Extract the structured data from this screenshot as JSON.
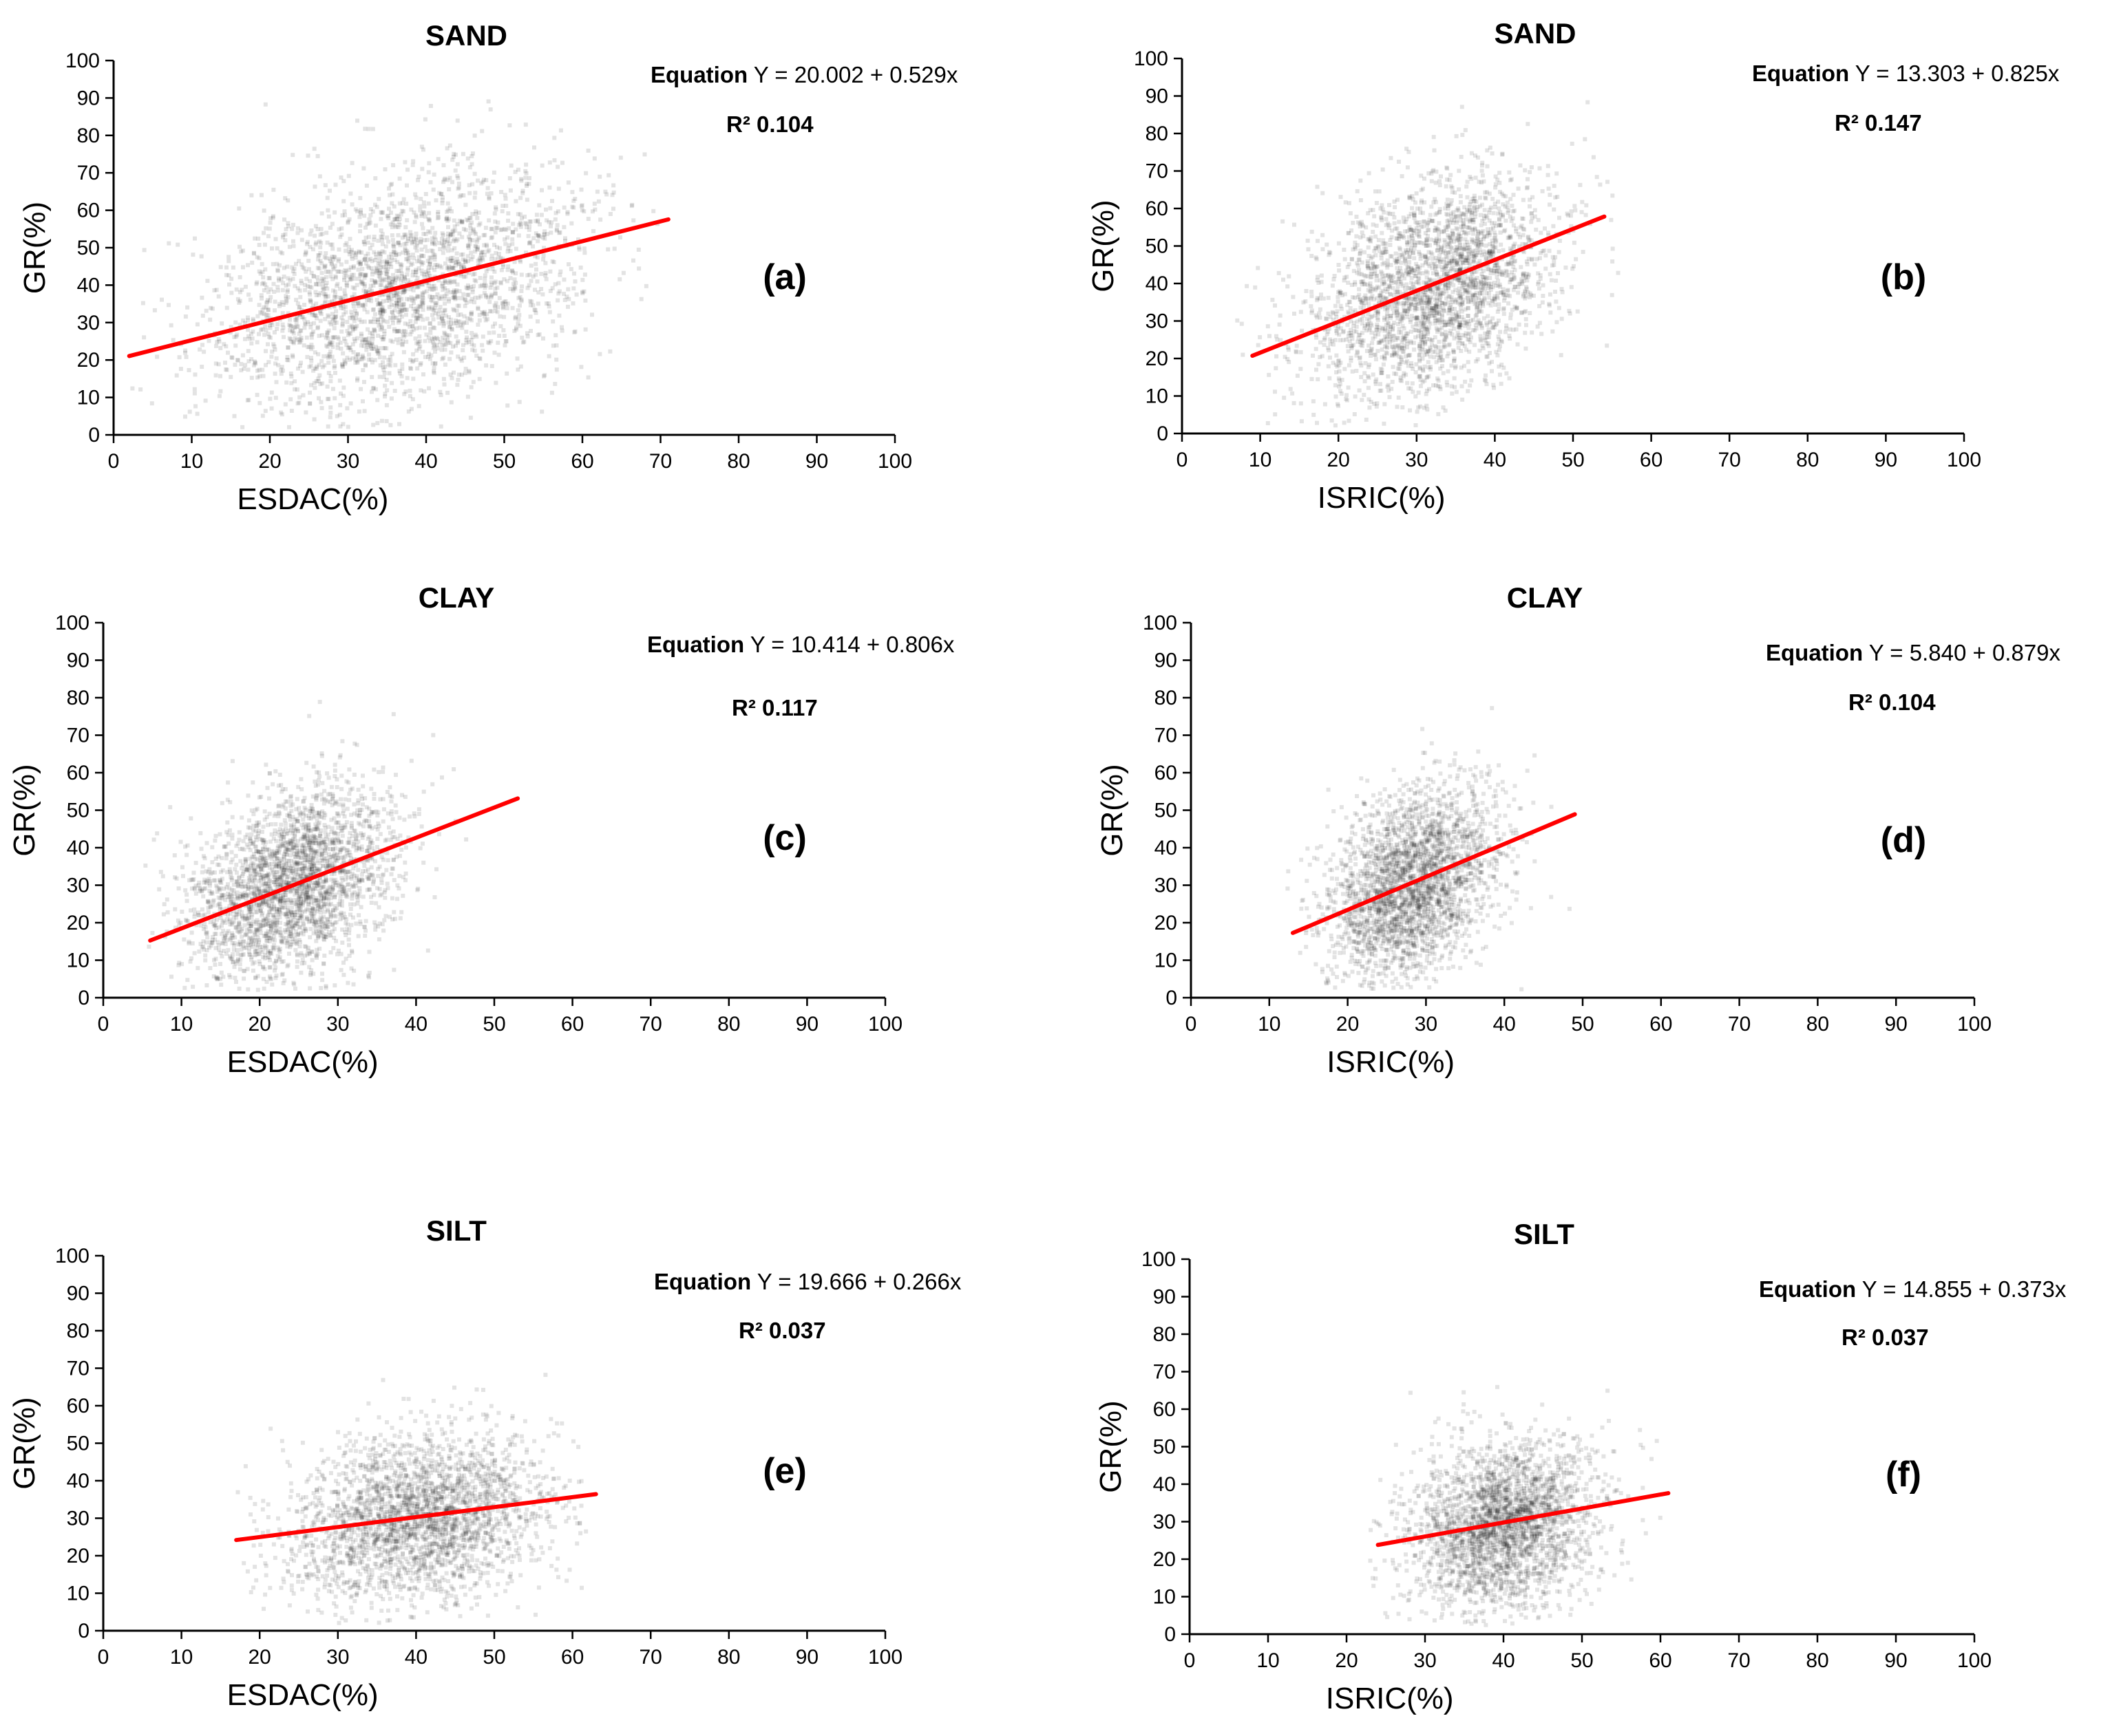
{
  "figure": {
    "axis_x_range": [
      0,
      100
    ],
    "axis_y_range": [
      0,
      100
    ],
    "tick_step": 10,
    "y_label": "GR(%)",
    "equation_label": "Equation",
    "r2_label": "R²",
    "colors": {
      "points": "#000000",
      "fit_line": "#ff0000",
      "axis": "#000000"
    }
  },
  "chart_data": [
    {
      "type": "scatter",
      "panel": "(a)",
      "title": "SAND",
      "xlabel": "ESDAC(%)",
      "ylabel": "GR(%)",
      "xlim": [
        0,
        100
      ],
      "ylim": [
        0,
        100
      ],
      "grid": false,
      "equation_text": "Y = 20.002 + 0.529x",
      "r2_text": "0.104",
      "fit": {
        "intercept": 20.002,
        "slope": 0.529,
        "x_range": [
          2,
          71
        ]
      },
      "cloud": {
        "x_mean": 36,
        "x_sd": 12,
        "y_mean": 39,
        "y_sd": 16,
        "x_range": [
          2,
          70
        ],
        "y_range": [
          2,
          97
        ],
        "n": 2600,
        "seed": 11
      }
    },
    {
      "type": "scatter",
      "panel": "(b)",
      "title": "SAND",
      "xlabel": "ISRIC(%)",
      "ylabel": "GR(%)",
      "xlim": [
        0,
        100
      ],
      "ylim": [
        0,
        100
      ],
      "grid": false,
      "equation_text": "Y = 13.303 + 0.825x",
      "r2_text": "0.147",
      "fit": {
        "intercept": 13.303,
        "slope": 0.825,
        "x_range": [
          9,
          54
        ]
      },
      "cloud": {
        "x_mean": 32,
        "x_sd": 8,
        "y_mean": 39,
        "y_sd": 15,
        "x_range": [
          7,
          56
        ],
        "y_range": [
          2,
          97
        ],
        "n": 2600,
        "seed": 22
      }
    },
    {
      "type": "scatter",
      "panel": "(c)",
      "title": "CLAY",
      "xlabel": "ESDAC(%)",
      "ylabel": "GR(%)",
      "xlim": [
        0,
        100
      ],
      "ylim": [
        0,
        100
      ],
      "grid": false,
      "equation_text": "Y = 10.414 + 0.806x",
      "r2_text": "0.117",
      "fit": {
        "intercept": 10.414,
        "slope": 0.806,
        "x_range": [
          6,
          53
        ]
      },
      "cloud": {
        "x_mean": 24,
        "x_sd": 6.5,
        "y_mean": 30,
        "y_sd": 13,
        "x_range": [
          5,
          50
        ],
        "y_range": [
          2,
          82
        ],
        "n": 2600,
        "seed": 33
      }
    },
    {
      "type": "scatter",
      "panel": "(d)",
      "title": "CLAY",
      "xlabel": "ISRIC(%)",
      "ylabel": "GR(%)",
      "xlim": [
        0,
        100
      ],
      "ylim": [
        0,
        100
      ],
      "grid": false,
      "equation_text": "Y = 5.840 + 0.879x",
      "r2_text": "0.104",
      "fit": {
        "intercept": 5.84,
        "slope": 0.879,
        "x_range": [
          13,
          49
        ]
      },
      "cloud": {
        "x_mean": 28,
        "x_sd": 5.5,
        "y_mean": 30,
        "y_sd": 13,
        "x_range": [
          12,
          50
        ],
        "y_range": [
          2,
          82
        ],
        "n": 2600,
        "seed": 44
      }
    },
    {
      "type": "scatter",
      "panel": "(e)",
      "title": "SILT",
      "xlabel": "ESDAC(%)",
      "ylabel": "GR(%)",
      "xlim": [
        0,
        100
      ],
      "ylim": [
        0,
        100
      ],
      "grid": false,
      "equation_text": "Y = 19.666 + 0.266x",
      "r2_text": "0.037",
      "fit": {
        "intercept": 19.666,
        "slope": 0.266,
        "x_range": [
          17,
          63
        ]
      },
      "cloud": {
        "x_mean": 40,
        "x_sd": 8.5,
        "y_mean": 30,
        "y_sd": 11,
        "x_range": [
          17,
          62
        ],
        "y_range": [
          2,
          78
        ],
        "n": 2600,
        "seed": 55
      }
    },
    {
      "type": "scatter",
      "panel": "(f)",
      "title": "SILT",
      "xlabel": "ISRIC(%)",
      "ylabel": "GR(%)",
      "xlim": [
        0,
        100
      ],
      "ylim": [
        0,
        100
      ],
      "grid": false,
      "equation_text": "Y = 14.855 + 0.373x",
      "r2_text": "0.037",
      "fit": {
        "intercept": 14.855,
        "slope": 0.373,
        "x_range": [
          24,
          61
        ]
      },
      "cloud": {
        "x_mean": 40,
        "x_sd": 6,
        "y_mean": 29,
        "y_sd": 11,
        "x_range": [
          23,
          61
        ],
        "y_range": [
          2,
          78
        ],
        "n": 2600,
        "seed": 66
      }
    }
  ]
}
